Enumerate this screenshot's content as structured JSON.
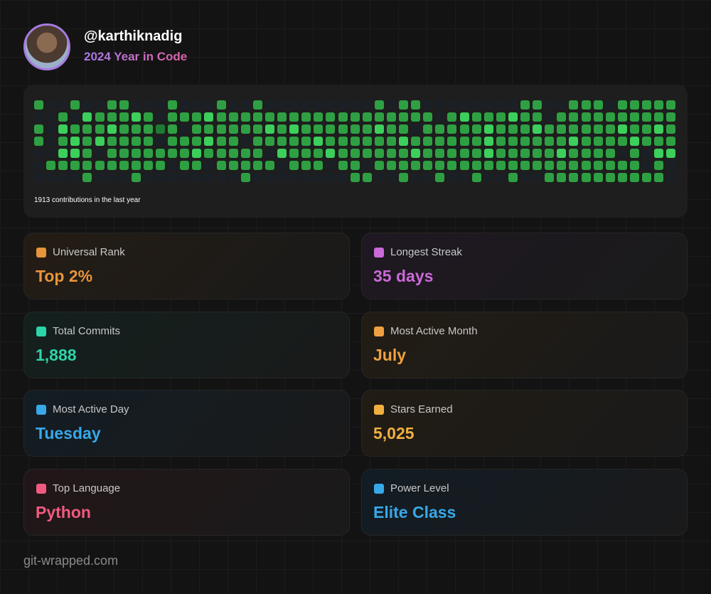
{
  "header": {
    "username": "@karthiknadig",
    "subtitle": "2024 Year in Code"
  },
  "contributions": {
    "summary": "1913 contributions in the last year",
    "palette": [
      "#1b2027",
      "#1f7a35",
      "#2ea043",
      "#3ccf5c"
    ],
    "levels": [
      [
        2,
        0,
        0,
        2,
        0,
        0,
        2,
        2,
        0,
        0,
        0,
        2,
        0,
        0,
        0,
        2,
        0,
        0,
        2,
        0,
        0,
        0,
        0,
        0,
        0,
        0,
        0,
        0,
        2,
        0,
        2,
        2,
        0,
        0,
        0,
        0,
        0,
        0,
        0,
        0,
        2,
        2,
        0,
        0,
        2,
        2,
        2,
        0,
        2,
        2,
        2,
        2,
        2
      ],
      [
        0,
        0,
        2,
        0,
        3,
        2,
        2,
        2,
        3,
        2,
        0,
        2,
        2,
        2,
        3,
        2,
        2,
        2,
        2,
        2,
        2,
        2,
        2,
        2,
        2,
        2,
        2,
        2,
        2,
        2,
        2,
        2,
        2,
        0,
        2,
        3,
        2,
        2,
        2,
        3,
        2,
        2,
        0,
        2,
        2,
        2,
        2,
        2,
        2,
        2,
        2,
        2,
        2
      ],
      [
        2,
        0,
        3,
        2,
        2,
        2,
        3,
        2,
        2,
        2,
        1,
        2,
        0,
        2,
        2,
        2,
        2,
        2,
        2,
        3,
        2,
        3,
        2,
        2,
        2,
        2,
        2,
        2,
        3,
        2,
        2,
        0,
        2,
        2,
        2,
        2,
        2,
        3,
        2,
        2,
        2,
        3,
        2,
        2,
        2,
        2,
        2,
        2,
        3,
        2,
        2,
        3,
        2
      ],
      [
        2,
        0,
        2,
        3,
        2,
        3,
        2,
        2,
        2,
        2,
        0,
        2,
        2,
        2,
        3,
        2,
        2,
        0,
        2,
        2,
        2,
        2,
        2,
        3,
        2,
        2,
        2,
        2,
        2,
        2,
        3,
        2,
        2,
        2,
        2,
        2,
        2,
        3,
        2,
        2,
        2,
        2,
        2,
        2,
        3,
        2,
        2,
        2,
        2,
        3,
        2,
        2,
        2
      ],
      [
        0,
        0,
        3,
        3,
        2,
        0,
        2,
        2,
        2,
        2,
        2,
        2,
        2,
        3,
        2,
        2,
        2,
        2,
        2,
        0,
        3,
        2,
        2,
        2,
        3,
        2,
        2,
        2,
        2,
        2,
        2,
        3,
        2,
        2,
        2,
        2,
        2,
        3,
        2,
        2,
        2,
        2,
        2,
        3,
        2,
        2,
        2,
        2,
        0,
        2,
        0,
        3,
        3
      ],
      [
        0,
        2,
        2,
        2,
        2,
        2,
        2,
        2,
        2,
        2,
        2,
        0,
        2,
        2,
        0,
        2,
        2,
        2,
        2,
        2,
        0,
        2,
        2,
        2,
        0,
        2,
        2,
        0,
        2,
        2,
        2,
        2,
        2,
        2,
        2,
        2,
        2,
        2,
        2,
        2,
        2,
        2,
        2,
        2,
        2,
        2,
        2,
        2,
        2,
        2,
        0,
        2,
        0
      ],
      [
        0,
        0,
        0,
        0,
        2,
        0,
        0,
        0,
        2,
        0,
        0,
        0,
        0,
        0,
        0,
        0,
        0,
        2,
        0,
        0,
        0,
        0,
        0,
        0,
        0,
        0,
        2,
        2,
        0,
        0,
        2,
        0,
        0,
        2,
        0,
        0,
        2,
        0,
        0,
        2,
        0,
        0,
        2,
        2,
        2,
        2,
        2,
        2,
        2,
        2,
        2,
        2,
        0
      ]
    ]
  },
  "stats": [
    {
      "label": "Universal Rank",
      "value": "Top 2%",
      "color": "#e8943a",
      "bg": "#231c14"
    },
    {
      "label": "Longest Streak",
      "value": "35 days",
      "color": "#c96ad8",
      "bg": "#1f1822"
    },
    {
      "label": "Total Commits",
      "value": "1,888",
      "color": "#2dd4a8",
      "bg": "#13201e"
    },
    {
      "label": "Most Active Month",
      "value": "July",
      "color": "#f0a040",
      "bg": "#221c14"
    },
    {
      "label": "Most Active Day",
      "value": "Tuesday",
      "color": "#38a8e8",
      "bg": "#131d24"
    },
    {
      "label": "Stars Earned",
      "value": "5,025",
      "color": "#f0b040",
      "bg": "#211c14"
    },
    {
      "label": "Top Language",
      "value": "Python",
      "color": "#f05a80",
      "bg": "#221618"
    },
    {
      "label": "Power Level",
      "value": "Elite Class",
      "color": "#38a8e8",
      "bg": "#121c24"
    }
  ],
  "footer": "git-wrapped.com"
}
